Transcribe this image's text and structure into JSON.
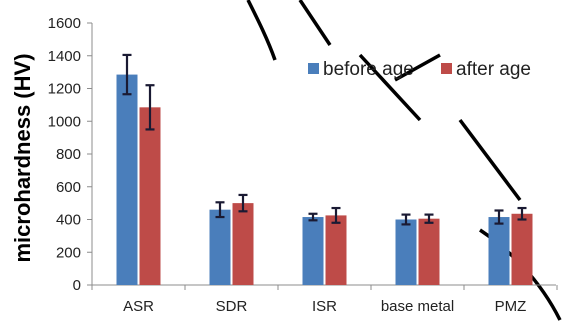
{
  "chart_data": {
    "type": "bar",
    "ylabel": "microhardness (HV)",
    "xlabel": "",
    "ylim": [
      0,
      1600
    ],
    "yticks": [
      0,
      200,
      400,
      600,
      800,
      1000,
      1200,
      1400,
      1600
    ],
    "categories": [
      "ASR",
      "SDR",
      "ISR",
      "base metal",
      "PMZ"
    ],
    "series": [
      {
        "name": "before age",
        "color": "#4a7ebb",
        "values": [
          1285,
          460,
          415,
          400,
          415
        ],
        "error": [
          120,
          45,
          20,
          30,
          40
        ]
      },
      {
        "name": "after age",
        "color": "#be4b48",
        "values": [
          1085,
          500,
          425,
          405,
          435
        ],
        "error": [
          135,
          50,
          45,
          25,
          35
        ]
      }
    ],
    "error_color": "#1a1a33",
    "legend_position": "top-right",
    "grid": false
  }
}
